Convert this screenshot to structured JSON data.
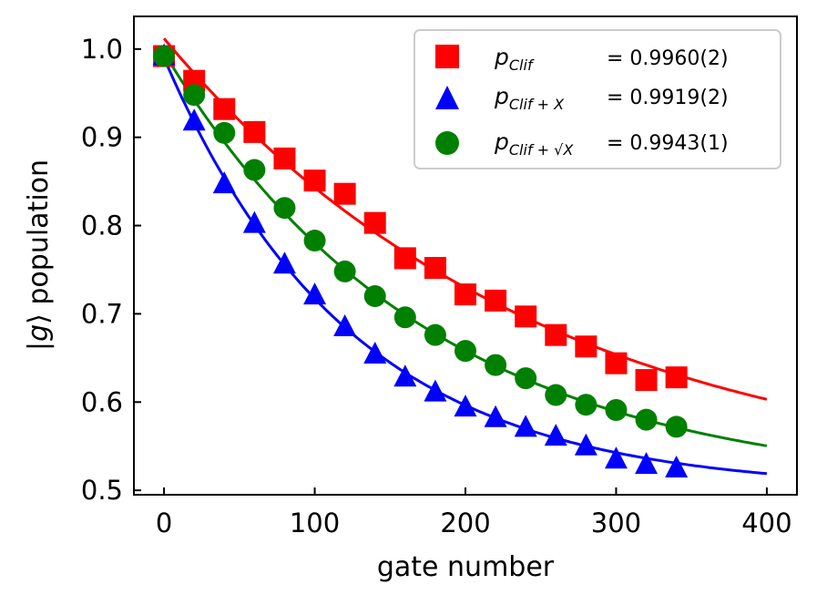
{
  "chart_data": {
    "type": "scatter",
    "title": "",
    "xlabel": "gate number",
    "ylabel": "|g⟩ population",
    "ylabel_parts": {
      "pre": "|",
      "sym": "g",
      "post": "⟩ population"
    },
    "xlim": [
      -20,
      420
    ],
    "ylim": [
      0.495,
      1.037
    ],
    "xticks": [
      0,
      100,
      200,
      300,
      400
    ],
    "xtick_labels": [
      "0",
      "100",
      "200",
      "300",
      "400"
    ],
    "yticks": [
      0.5,
      0.6,
      0.7,
      0.8,
      0.9,
      1.0
    ],
    "ytick_labels": [
      "0.5",
      "0.6",
      "0.7",
      "0.8",
      "0.9",
      "1.0"
    ],
    "grid": false,
    "legend_position": "top-right",
    "x": [
      0,
      20,
      40,
      60,
      80,
      100,
      120,
      140,
      160,
      180,
      200,
      220,
      240,
      260,
      280,
      300,
      320,
      340
    ],
    "series": [
      {
        "name": "p_Clif",
        "legend_symbol": "p",
        "legend_sub": "Clif",
        "legend_value": "= 0.9960(2)",
        "color": "#ff0000",
        "marker": "square",
        "values": [
          0.992,
          0.964,
          0.932,
          0.906,
          0.876,
          0.851,
          0.836,
          0.803,
          0.763,
          0.752,
          0.722,
          0.715,
          0.697,
          0.676,
          0.663,
          0.644,
          0.625,
          0.628
        ],
        "fit": {
          "a": 0.5,
          "b": 0.512,
          "p": 0.996
        }
      },
      {
        "name": "p_Clif+X",
        "legend_symbol": "p",
        "legend_sub": "Clif + X",
        "legend_value": "= 0.9919(2)",
        "color": "#0000ff",
        "marker": "triangle",
        "values": [
          0.993,
          0.919,
          0.848,
          0.803,
          0.757,
          0.722,
          0.686,
          0.655,
          0.629,
          0.612,
          0.595,
          0.583,
          0.572,
          0.562,
          0.551,
          0.536,
          0.53,
          0.526
        ],
        "fit": {
          "a": 0.5,
          "b": 0.49,
          "p": 0.9919
        }
      },
      {
        "name": "p_Clif+√X",
        "legend_symbol": "p",
        "legend_sub": "Clif + √X",
        "legend_value": "= 0.9943(1)",
        "color": "#008000",
        "marker": "circle",
        "values": [
          0.992,
          0.948,
          0.905,
          0.863,
          0.82,
          0.783,
          0.748,
          0.72,
          0.696,
          0.676,
          0.658,
          0.642,
          0.627,
          0.608,
          0.597,
          0.591,
          0.58,
          0.572
        ],
        "fit": {
          "a": 0.5,
          "b": 0.496,
          "p": 0.9943
        }
      }
    ]
  }
}
